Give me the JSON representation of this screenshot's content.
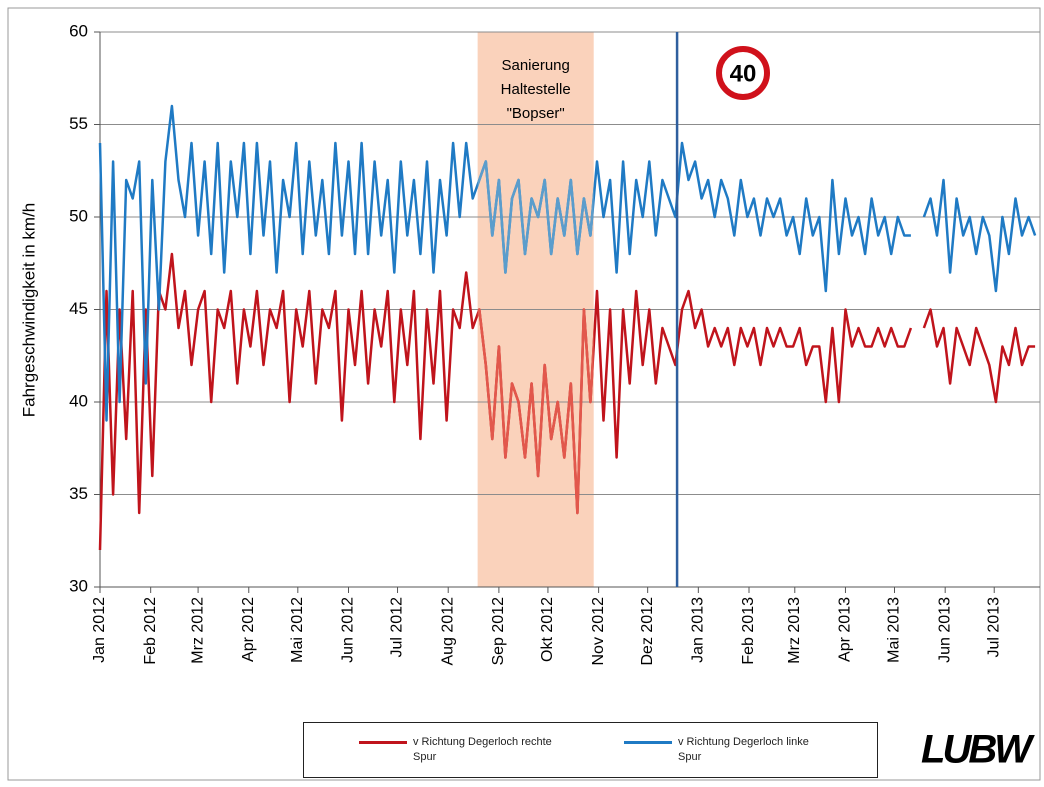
{
  "chart_data": {
    "type": "line",
    "y_label": "Fahrgeschwindigkeit in km/h",
    "xlim": [
      0,
      575
    ],
    "ylim": [
      30,
      60
    ],
    "yticks": [
      30,
      35,
      40,
      45,
      50,
      55,
      60
    ],
    "grid": true,
    "xticks": [
      {
        "value": 0,
        "label": "Jan 2012"
      },
      {
        "value": 31,
        "label": "Feb 2012"
      },
      {
        "value": 60,
        "label": "Mrz 2012"
      },
      {
        "value": 91,
        "label": "Apr 2012"
      },
      {
        "value": 121,
        "label": "Mai 2012"
      },
      {
        "value": 152,
        "label": "Jun 2012"
      },
      {
        "value": 182,
        "label": "Jul 2012"
      },
      {
        "value": 213,
        "label": "Aug 2012"
      },
      {
        "value": 244,
        "label": "Sep 2012"
      },
      {
        "value": 274,
        "label": "Okt 2012"
      },
      {
        "value": 305,
        "label": "Nov 2012"
      },
      {
        "value": 335,
        "label": "Dez 2012"
      },
      {
        "value": 366,
        "label": "Jan 2013"
      },
      {
        "value": 397,
        "label": "Feb 2013"
      },
      {
        "value": 425,
        "label": "Mrz 2013"
      },
      {
        "value": 456,
        "label": "Apr 2013"
      },
      {
        "value": 486,
        "label": "Mai 2013"
      },
      {
        "value": 517,
        "label": "Jun 2013"
      },
      {
        "value": 547,
        "label": "Jul 2013"
      }
    ],
    "highlight": {
      "xlim": [
        231,
        302
      ],
      "label": [
        "Sanierung",
        "Haltestelle",
        "\"Bopser\""
      ],
      "color": "#fad2bb"
    },
    "vline": {
      "x": 353,
      "color": "#2f5f9e"
    },
    "sign": "40",
    "logo": "LUBW",
    "x": [
      0,
      4,
      8,
      12,
      16,
      20,
      24,
      28,
      32,
      36,
      40,
      44,
      48,
      52,
      56,
      60,
      64,
      68,
      72,
      76,
      80,
      84,
      88,
      92,
      96,
      100,
      104,
      108,
      112,
      116,
      120,
      124,
      128,
      132,
      136,
      140,
      144,
      148,
      152,
      156,
      160,
      164,
      168,
      172,
      176,
      180,
      184,
      188,
      192,
      196,
      200,
      204,
      208,
      212,
      216,
      220,
      224,
      228,
      232,
      236,
      240,
      244,
      248,
      252,
      256,
      260,
      264,
      268,
      272,
      276,
      280,
      284,
      288,
      292,
      296,
      300,
      304,
      308,
      312,
      316,
      320,
      324,
      328,
      332,
      336,
      340,
      344,
      348,
      352,
      356,
      360,
      364,
      368,
      372,
      376,
      380,
      384,
      388,
      392,
      396,
      400,
      404,
      408,
      412,
      416,
      420,
      424,
      428,
      432,
      436,
      440,
      444,
      448,
      452,
      456,
      460,
      464,
      468,
      472,
      476,
      480,
      484,
      488,
      492,
      496,
      500,
      504,
      508,
      512,
      516,
      520,
      524,
      528,
      532,
      536,
      540,
      544,
      548,
      552,
      556,
      560,
      564,
      568,
      572
    ],
    "series": [
      {
        "name": "v Richtung Degerloch rechte Spur",
        "color": "#c0141c",
        "highlight_color": "#e2584c",
        "values": [
          32,
          46,
          35,
          45,
          38,
          46,
          34,
          45,
          36,
          46,
          45,
          48,
          44,
          46,
          42,
          45,
          46,
          40,
          45,
          44,
          46,
          41,
          45,
          43,
          46,
          42,
          45,
          44,
          46,
          40,
          45,
          43,
          46,
          41,
          45,
          44,
          46,
          39,
          45,
          42,
          46,
          41,
          45,
          43,
          46,
          40,
          45,
          42,
          46,
          38,
          45,
          41,
          46,
          39,
          45,
          44,
          47,
          44,
          45,
          42,
          38,
          43,
          37,
          41,
          40,
          37,
          41,
          36,
          42,
          38,
          40,
          37,
          41,
          34,
          45,
          40,
          46,
          39,
          45,
          37,
          45,
          41,
          46,
          42,
          45,
          41,
          44,
          43,
          42,
          45,
          46,
          44,
          45,
          43,
          44,
          43,
          44,
          42,
          44,
          43,
          44,
          42,
          44,
          43,
          44,
          43,
          43,
          44,
          42,
          43,
          43,
          40,
          44,
          40,
          45,
          43,
          44,
          43,
          43,
          44,
          43,
          44,
          43,
          43,
          44,
          null,
          44,
          45,
          43,
          44,
          41,
          44,
          43,
          42,
          44,
          43,
          42,
          40,
          43,
          42,
          44,
          42,
          43,
          43
        ]
      },
      {
        "name": "v Richtung Degerloch linke Spur",
        "color": "#1f7ac4",
        "highlight_color": "#5b9dcc",
        "values": [
          54,
          39,
          53,
          40,
          52,
          51,
          53,
          41,
          52,
          45,
          53,
          56,
          52,
          50,
          54,
          49,
          53,
          48,
          54,
          47,
          53,
          50,
          54,
          48,
          54,
          49,
          53,
          47,
          52,
          50,
          54,
          48,
          53,
          49,
          52,
          48,
          54,
          49,
          53,
          48,
          54,
          48,
          53,
          49,
          52,
          47,
          53,
          49,
          52,
          48,
          53,
          47,
          52,
          49,
          54,
          50,
          54,
          51,
          52,
          53,
          49,
          52,
          47,
          51,
          52,
          48,
          51,
          50,
          52,
          48,
          51,
          49,
          52,
          48,
          51,
          49,
          53,
          50,
          52,
          47,
          53,
          48,
          52,
          50,
          53,
          49,
          52,
          51,
          50,
          54,
          52,
          53,
          51,
          52,
          50,
          52,
          51,
          49,
          52,
          50,
          51,
          49,
          51,
          50,
          51,
          49,
          50,
          48,
          51,
          49,
          50,
          46,
          52,
          48,
          51,
          49,
          50,
          48,
          51,
          49,
          50,
          48,
          50,
          49,
          49,
          null,
          50,
          51,
          49,
          52,
          47,
          51,
          49,
          50,
          48,
          50,
          49,
          46,
          50,
          48,
          51,
          49,
          50,
          49
        ]
      }
    ]
  }
}
